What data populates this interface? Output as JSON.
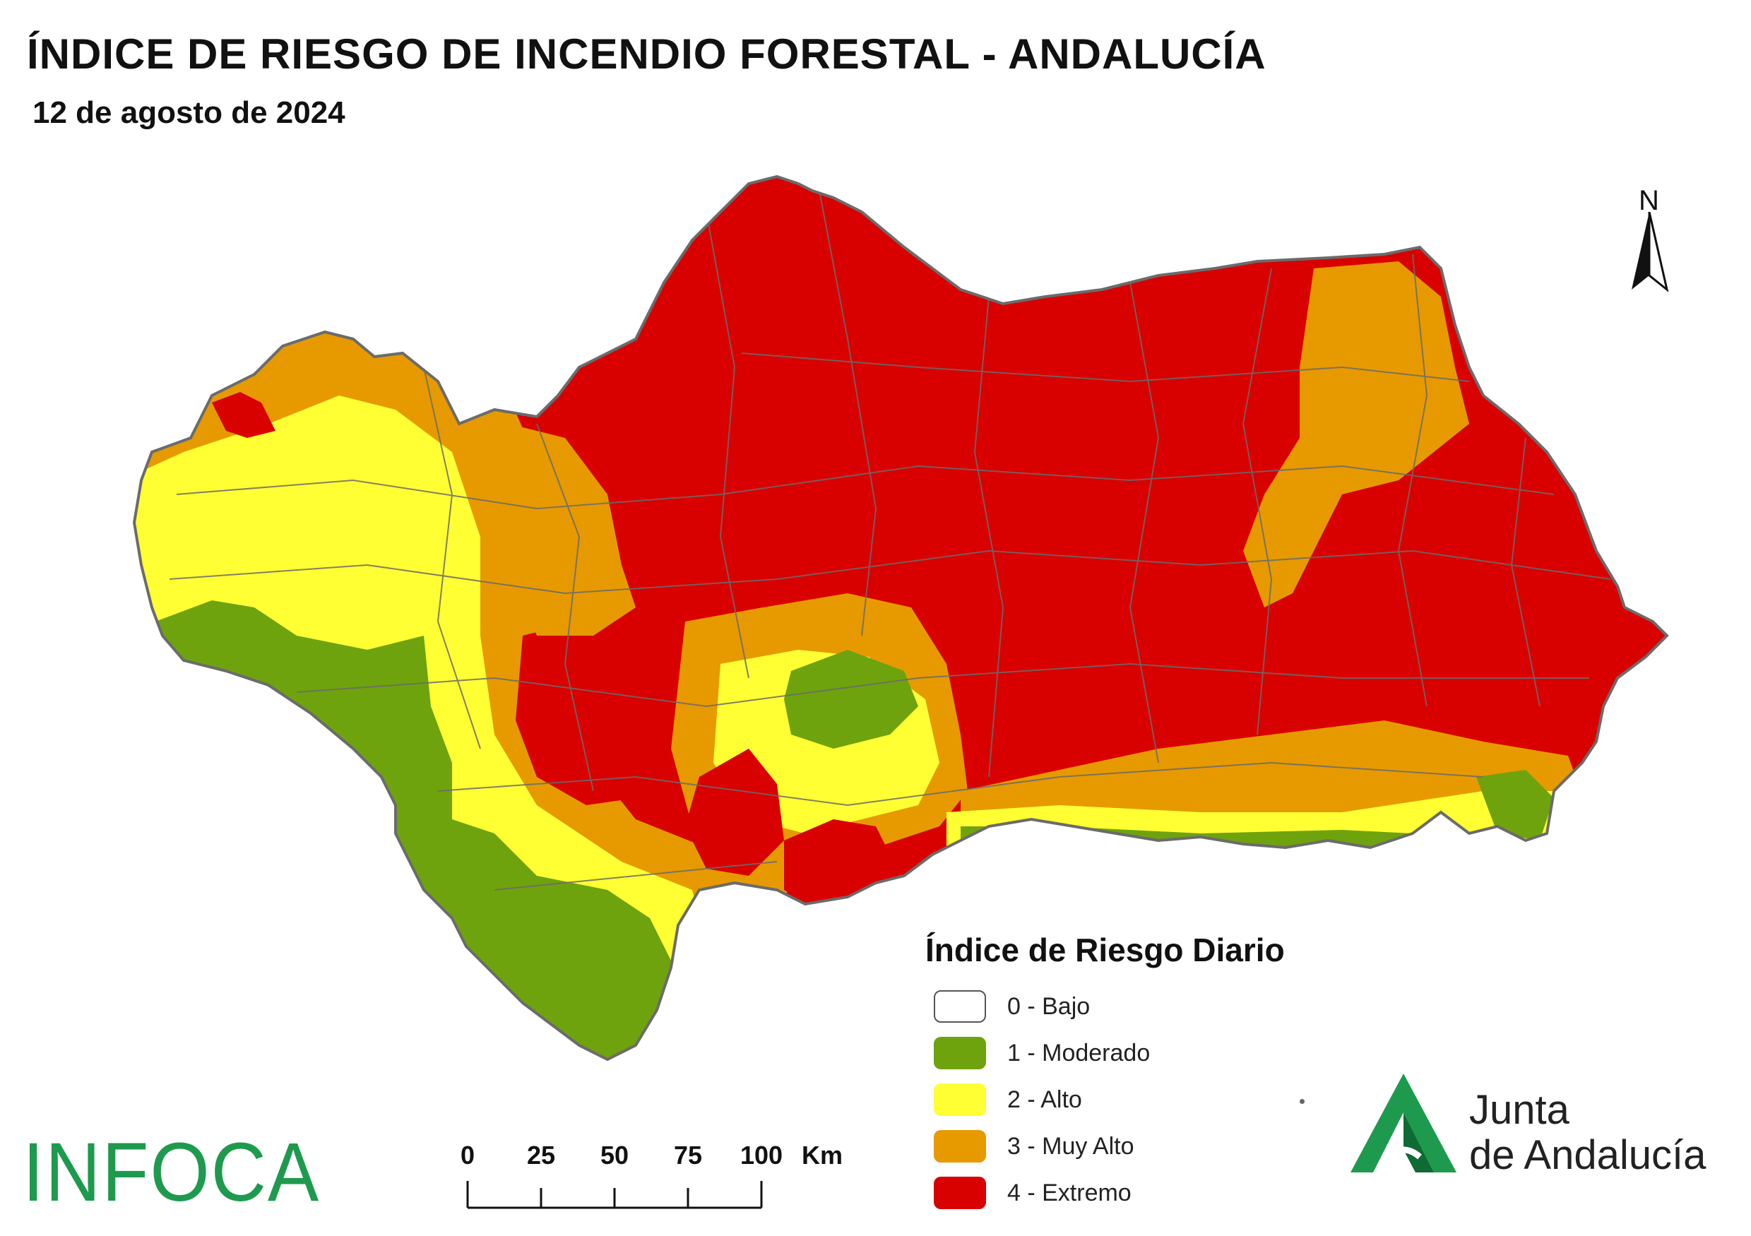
{
  "header": {
    "title": "ÍNDICE DE RIESGO DE INCENDIO FORESTAL - ANDALUCÍA",
    "date": "12 de agosto de 2024"
  },
  "north_arrow": {
    "label": "N"
  },
  "legend": {
    "title": "Índice de Riesgo Diario",
    "items": [
      {
        "label": "0 - Bajo",
        "color": "#ffffff"
      },
      {
        "label": "1 - Moderado",
        "color": "#6fa30d"
      },
      {
        "label": "2 - Alto",
        "color": "#ffff33"
      },
      {
        "label": "3 - Muy Alto",
        "color": "#e69a00"
      },
      {
        "label": "4 - Extremo",
        "color": "#d90000"
      }
    ]
  },
  "scale_bar": {
    "ticks": [
      "0",
      "25",
      "50",
      "75",
      "100"
    ],
    "unit": "Km"
  },
  "branding": {
    "infoca": "INFOCA",
    "junta_line1": "Junta",
    "junta_line2": "de Andalucía",
    "brand_green": "#1e9a4e"
  },
  "map_colors": {
    "border": "#6b6b6b",
    "extreme": "#d90000",
    "very_high": "#e69a00",
    "high": "#ffff33",
    "moderate": "#6fa30d"
  }
}
